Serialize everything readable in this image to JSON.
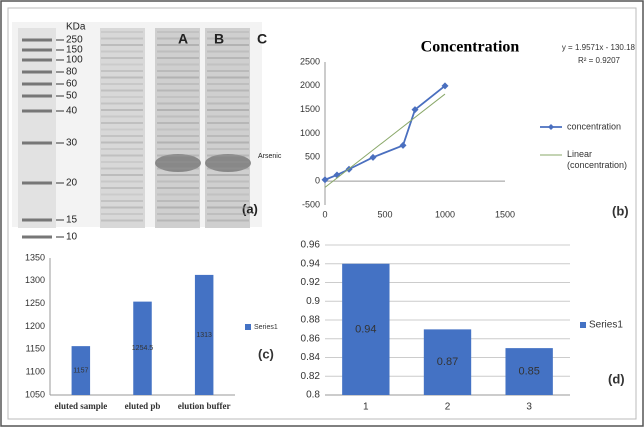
{
  "gel": {
    "unit": "KDa",
    "markers": [
      "250",
      "150",
      "100",
      "80",
      "60",
      "50",
      "40",
      "30",
      "20",
      "15",
      "10"
    ],
    "lanes": [
      "A",
      "B",
      "C"
    ],
    "annotation": "Arsenic",
    "panel": "(a)"
  },
  "chart_data": [
    {
      "type": "line",
      "title": "Concentration",
      "equation": "y = 1.9571x - 130.18",
      "r_squared": "R² = 0.9207",
      "panel": "(b)",
      "series": [
        {
          "name": "concentration",
          "color": "#4a6fbf",
          "x": [
            0,
            100,
            200,
            400,
            650,
            750,
            1000
          ],
          "values": [
            30,
            130,
            250,
            500,
            750,
            1500,
            2000
          ]
        },
        {
          "name": "Linear (concentration)",
          "color": "#8aa86a",
          "x": [
            0,
            1000
          ],
          "values": [
            -130,
            1827
          ]
        }
      ],
      "xlim": [
        0,
        1500
      ],
      "xticks": [
        0,
        500,
        1000,
        1500
      ],
      "ylim": [
        -500,
        2500
      ],
      "yticks": [
        -500,
        0,
        500,
        1000,
        1500,
        2000,
        2500
      ],
      "grid": false,
      "legend": "right"
    },
    {
      "type": "bar",
      "panel": "(c)",
      "categories": [
        "eluted sample",
        "eluted pb",
        "elution buffer"
      ],
      "series": [
        {
          "name": "Series1",
          "color": "#4472c4",
          "values": [
            1157,
            1254.5,
            1313
          ]
        }
      ],
      "ylim": [
        1050,
        1350
      ],
      "yticks": [
        1050,
        1100,
        1150,
        1200,
        1250,
        1300,
        1350
      ],
      "grid": false,
      "legend": "right"
    },
    {
      "type": "bar",
      "panel": "(d)",
      "categories": [
        "1",
        "2",
        "3"
      ],
      "series": [
        {
          "name": "Series1",
          "color": "#4472c4",
          "values": [
            0.94,
            0.87,
            0.85
          ]
        }
      ],
      "ylim": [
        0.8,
        0.96
      ],
      "yticks": [
        0.8,
        0.82,
        0.84,
        0.86,
        0.88,
        0.9,
        0.92,
        0.94,
        0.96
      ],
      "grid": true,
      "legend": "right"
    }
  ]
}
